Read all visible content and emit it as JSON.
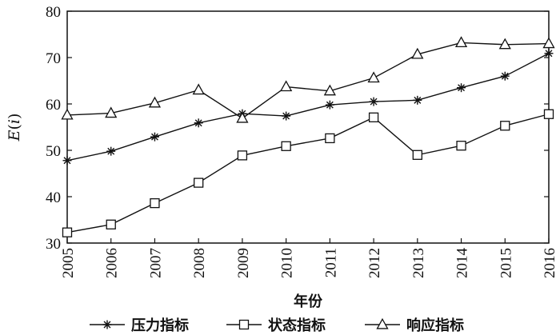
{
  "chart_data": {
    "type": "line",
    "title": "",
    "xlabel": "年份",
    "ylabel_main": "E",
    "ylabel_var": "i",
    "ylabel": "E(i)",
    "x": [
      "2005",
      "2006",
      "2007",
      "2008",
      "2009",
      "2010",
      "2011",
      "2012",
      "2013",
      "2014",
      "2015",
      "2016"
    ],
    "ylim": [
      30,
      80
    ],
    "yticks": [
      30,
      40,
      50,
      60,
      70,
      80
    ],
    "legend_position": "bottom",
    "series": [
      {
        "name": "压力指标",
        "marker": "star",
        "values": [
          47.8,
          49.8,
          52.9,
          55.9,
          57.9,
          57.4,
          59.8,
          60.5,
          60.8,
          63.5,
          66.0,
          70.9
        ]
      },
      {
        "name": "状态指标",
        "marker": "square",
        "values": [
          32.3,
          34.0,
          38.6,
          43.0,
          48.9,
          50.9,
          52.6,
          57.1,
          49.0,
          51.0,
          55.3,
          57.8
        ]
      },
      {
        "name": "响应指标",
        "marker": "triangle",
        "values": [
          57.6,
          58.0,
          60.2,
          63.0,
          56.9,
          63.7,
          62.8,
          65.6,
          70.7,
          73.2,
          72.8,
          73.0
        ]
      }
    ]
  }
}
